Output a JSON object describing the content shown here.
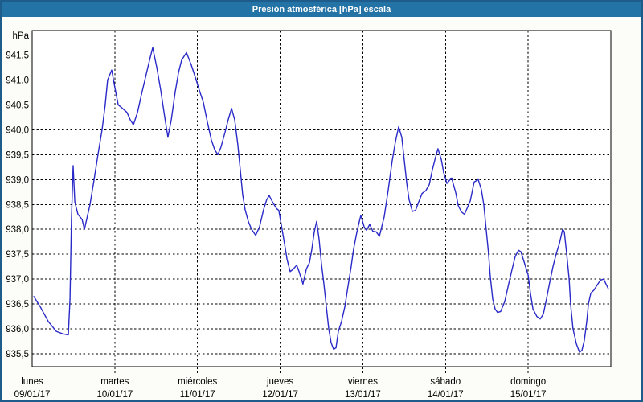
{
  "window": {
    "title": "Presión atmosférica [hPa] escala"
  },
  "colors": {
    "window_border": "#1e5c8c",
    "titlebar_bg": "#2473a6",
    "titlebar_text": "#ffffff",
    "window_bg": "#fcfdf8",
    "plot_bg": "#ffffff",
    "plot_border": "#000000",
    "grid": "#000000",
    "tick_text": "#000000",
    "line": "#2a2ac8"
  },
  "chart_data": {
    "type": "line",
    "title": "Presión atmosférica [hPa] escala",
    "ylabel": "hPa",
    "grid": "dashed",
    "legend": "none",
    "y_axis": {
      "min": 935.5,
      "max": 941.5,
      "step": 0.5,
      "tick_labels": [
        "941,5",
        "941,0",
        "940,5",
        "940,0",
        "939,5",
        "939,0",
        "938,5",
        "938,0",
        "937,5",
        "937,0",
        "936,5",
        "936,0",
        "935,5"
      ]
    },
    "x_axis": {
      "total_hours": 168,
      "days": [
        {
          "name": "lunes",
          "date": "09/01/17",
          "start_hour": 0
        },
        {
          "name": "martes",
          "date": "10/01/17",
          "start_hour": 24
        },
        {
          "name": "miércoles",
          "date": "11/01/17",
          "start_hour": 48
        },
        {
          "name": "jueves",
          "date": "12/01/17",
          "start_hour": 72
        },
        {
          "name": "viernes",
          "date": "13/01/17",
          "start_hour": 96
        },
        {
          "name": "sábado",
          "date": "14/01/17",
          "start_hour": 120
        },
        {
          "name": "domingo",
          "date": "15/01/17",
          "start_hour": 144
        }
      ],
      "gridline_hours": [
        24,
        48,
        72,
        96,
        120,
        144
      ]
    },
    "series": [
      {
        "name": "Presión atmosférica [hPa]",
        "color": "#2a2ac8",
        "points": [
          [
            0.5,
            936.65
          ],
          [
            2.3,
            936.45
          ],
          [
            4.7,
            936.15
          ],
          [
            7,
            935.95
          ],
          [
            8.9,
            935.9
          ],
          [
            10.5,
            935.88
          ],
          [
            11,
            936.6
          ],
          [
            11.4,
            938.2
          ],
          [
            11.9,
            939.28
          ],
          [
            12.4,
            938.55
          ],
          [
            13.3,
            938.3
          ],
          [
            14.5,
            938.2
          ],
          [
            15.2,
            938.0
          ],
          [
            16.8,
            938.5
          ],
          [
            18,
            939.0
          ],
          [
            19.1,
            939.5
          ],
          [
            20.3,
            940.0
          ],
          [
            21.2,
            940.5
          ],
          [
            21.9,
            941.0
          ],
          [
            23.1,
            941.2
          ],
          [
            24,
            940.85
          ],
          [
            25,
            940.5
          ],
          [
            25.9,
            940.45
          ],
          [
            27.5,
            940.35
          ],
          [
            28.5,
            940.2
          ],
          [
            29.4,
            940.1
          ],
          [
            30.6,
            940.35
          ],
          [
            31.7,
            940.7
          ],
          [
            32.9,
            941.05
          ],
          [
            34.1,
            941.4
          ],
          [
            35,
            941.65
          ],
          [
            36.2,
            941.25
          ],
          [
            37.3,
            940.8
          ],
          [
            38.5,
            940.25
          ],
          [
            39.4,
            939.85
          ],
          [
            40.4,
            940.2
          ],
          [
            41.5,
            940.75
          ],
          [
            42.5,
            941.15
          ],
          [
            43.4,
            941.4
          ],
          [
            44.8,
            941.55
          ],
          [
            46.2,
            941.3
          ],
          [
            47.4,
            941.05
          ],
          [
            48.5,
            940.8
          ],
          [
            49.7,
            940.55
          ],
          [
            50.9,
            940.15
          ],
          [
            52,
            939.8
          ],
          [
            53,
            939.6
          ],
          [
            53.9,
            939.5
          ],
          [
            54.8,
            939.65
          ],
          [
            56,
            939.95
          ],
          [
            56.9,
            940.2
          ],
          [
            57.9,
            940.43
          ],
          [
            58.8,
            940.2
          ],
          [
            59.7,
            939.7
          ],
          [
            60.4,
            939.2
          ],
          [
            61.1,
            938.7
          ],
          [
            61.8,
            938.4
          ],
          [
            62.8,
            938.15
          ],
          [
            63.7,
            938.0
          ],
          [
            64.9,
            937.88
          ],
          [
            66,
            938.05
          ],
          [
            67.2,
            938.4
          ],
          [
            68.1,
            938.6
          ],
          [
            68.8,
            938.68
          ],
          [
            69.8,
            938.55
          ],
          [
            70.9,
            938.42
          ],
          [
            71.6,
            938.38
          ],
          [
            72.3,
            938.1
          ],
          [
            73.3,
            937.7
          ],
          [
            74,
            937.4
          ],
          [
            74.9,
            937.15
          ],
          [
            75.8,
            937.2
          ],
          [
            76.8,
            937.28
          ],
          [
            77.5,
            937.15
          ],
          [
            78.2,
            937.0
          ],
          [
            78.6,
            936.9
          ],
          [
            79.6,
            937.2
          ],
          [
            80.5,
            937.33
          ],
          [
            81.2,
            937.6
          ],
          [
            81.9,
            937.95
          ],
          [
            82.6,
            938.16
          ],
          [
            83.3,
            937.8
          ],
          [
            84,
            937.3
          ],
          [
            84.7,
            936.9
          ],
          [
            85.4,
            936.45
          ],
          [
            86.1,
            936.0
          ],
          [
            86.8,
            935.72
          ],
          [
            87.5,
            935.59
          ],
          [
            88.2,
            935.62
          ],
          [
            88.9,
            935.95
          ],
          [
            89.8,
            936.15
          ],
          [
            90.8,
            936.45
          ],
          [
            91.7,
            936.86
          ],
          [
            92.6,
            937.25
          ],
          [
            93.3,
            937.6
          ],
          [
            94.3,
            937.95
          ],
          [
            95,
            938.16
          ],
          [
            95.4,
            938.28
          ],
          [
            96.4,
            938.05
          ],
          [
            97.1,
            937.98
          ],
          [
            98,
            938.1
          ],
          [
            98.9,
            937.96
          ],
          [
            99.9,
            937.95
          ],
          [
            100.8,
            937.86
          ],
          [
            102.2,
            938.25
          ],
          [
            103.4,
            938.8
          ],
          [
            104.5,
            939.37
          ],
          [
            105.5,
            939.77
          ],
          [
            106.4,
            940.06
          ],
          [
            107.3,
            939.85
          ],
          [
            108,
            939.4
          ],
          [
            108.7,
            938.95
          ],
          [
            109.4,
            938.6
          ],
          [
            110.4,
            938.36
          ],
          [
            111.3,
            938.38
          ],
          [
            112.2,
            938.55
          ],
          [
            113.2,
            938.72
          ],
          [
            114.3,
            938.78
          ],
          [
            115.3,
            938.9
          ],
          [
            116.2,
            939.2
          ],
          [
            117.1,
            939.45
          ],
          [
            117.8,
            939.62
          ],
          [
            118.8,
            939.4
          ],
          [
            119.5,
            939.13
          ],
          [
            120.4,
            938.92
          ],
          [
            121.1,
            938.98
          ],
          [
            121.8,
            939.03
          ],
          [
            123,
            938.73
          ],
          [
            123.7,
            938.48
          ],
          [
            124.6,
            938.35
          ],
          [
            125.5,
            938.3
          ],
          [
            127.2,
            938.57
          ],
          [
            128.3,
            938.95
          ],
          [
            129.5,
            939.0
          ],
          [
            130.4,
            938.8
          ],
          [
            131.1,
            938.5
          ],
          [
            131.8,
            938.0
          ],
          [
            132.5,
            937.5
          ],
          [
            133,
            937.05
          ],
          [
            133.7,
            936.6
          ],
          [
            134.4,
            936.4
          ],
          [
            135.1,
            936.33
          ],
          [
            136,
            936.35
          ],
          [
            137.2,
            936.55
          ],
          [
            138.4,
            936.92
          ],
          [
            139.3,
            937.19
          ],
          [
            140.2,
            937.45
          ],
          [
            141.2,
            937.58
          ],
          [
            141.9,
            937.55
          ],
          [
            142.8,
            937.35
          ],
          [
            144,
            937.08
          ],
          [
            144.7,
            936.7
          ],
          [
            145.4,
            936.4
          ],
          [
            146.5,
            936.25
          ],
          [
            147.5,
            936.2
          ],
          [
            148.4,
            936.3
          ],
          [
            149.3,
            936.6
          ],
          [
            150.3,
            936.95
          ],
          [
            151.2,
            937.25
          ],
          [
            152.1,
            937.5
          ],
          [
            153.1,
            937.72
          ],
          [
            154,
            938.0
          ],
          [
            154.5,
            937.95
          ],
          [
            155.2,
            937.5
          ],
          [
            155.9,
            937.0
          ],
          [
            156.3,
            936.5
          ],
          [
            157,
            936.0
          ],
          [
            158,
            935.7
          ],
          [
            158.9,
            935.53
          ],
          [
            159.6,
            935.57
          ],
          [
            160.3,
            935.77
          ],
          [
            161,
            936.15
          ],
          [
            161.5,
            936.5
          ],
          [
            162.2,
            936.72
          ],
          [
            163.1,
            936.78
          ],
          [
            164,
            936.88
          ],
          [
            165,
            936.98
          ],
          [
            165.9,
            937.0
          ],
          [
            166.6,
            936.9
          ],
          [
            167.3,
            936.8
          ]
        ]
      }
    ]
  }
}
